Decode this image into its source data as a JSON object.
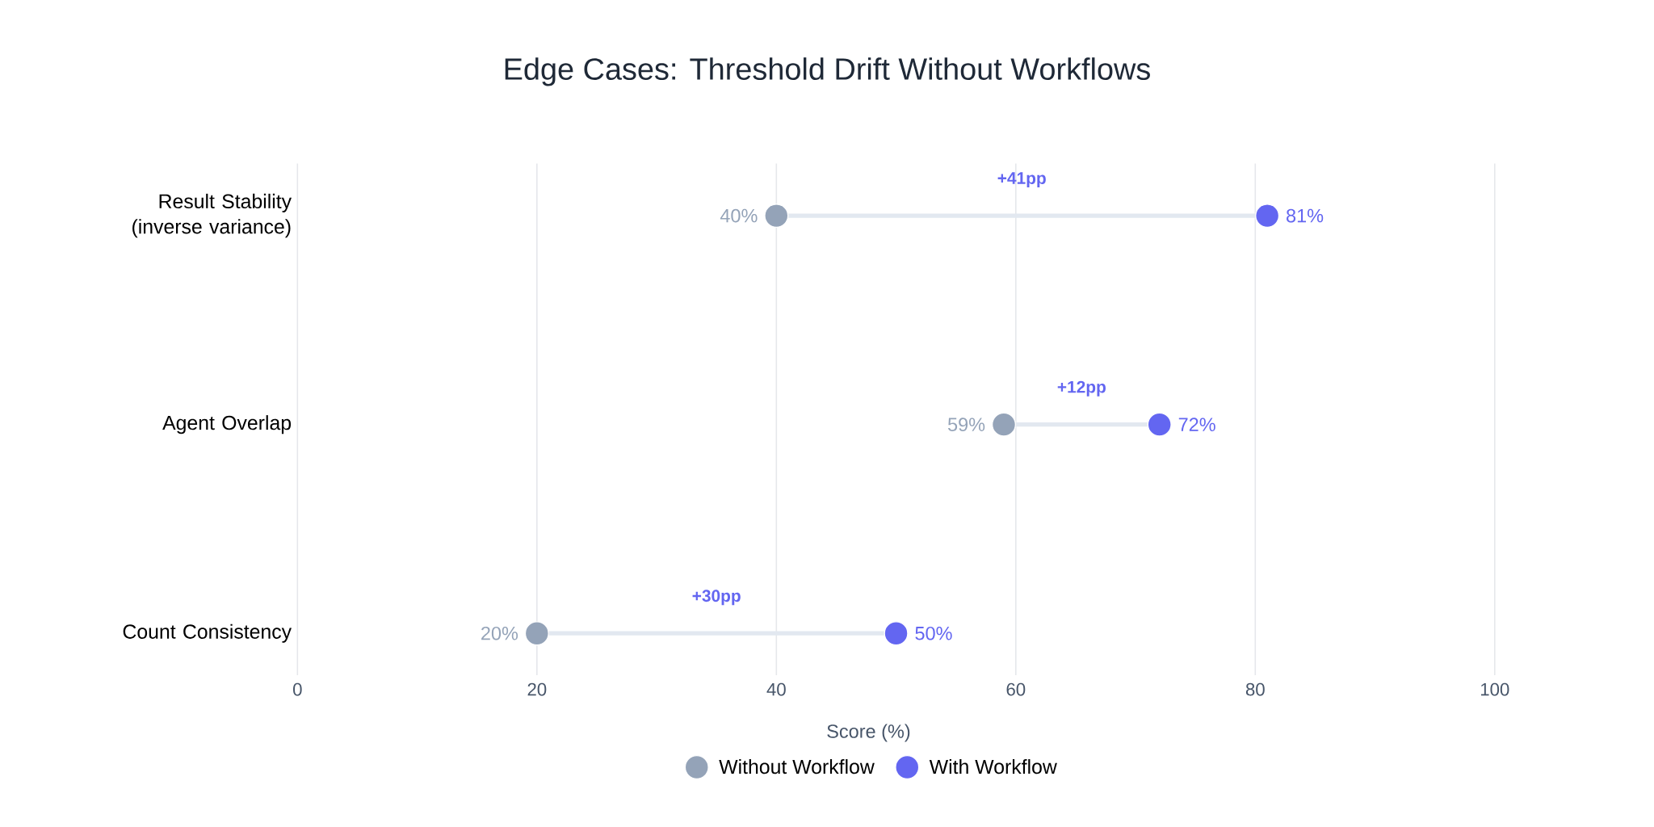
{
  "chart_data": {
    "type": "scatter",
    "orientation": "horizontal",
    "title": "Edge Cases: Threshold Drift Without Workflows",
    "xlabel": "Score (%)",
    "categories": [
      "Result Stability (inverse variance)",
      "Agent Overlap",
      "Count Consistency"
    ],
    "series": [
      {
        "name": "Without Workflow",
        "color": "#94a3b8",
        "values": [
          40,
          59,
          20
        ],
        "value_labels": [
          "40%",
          "59%",
          "20%"
        ]
      },
      {
        "name": "With Workflow",
        "color": "#6366f1",
        "values": [
          81,
          72,
          50
        ],
        "value_labels": [
          "81%",
          "72%",
          "50%"
        ]
      }
    ],
    "annotations": [
      "+41pp",
      "+12pp",
      "+30pp"
    ],
    "xlim": [
      0,
      100
    ],
    "xticks": [
      0,
      20,
      40,
      60,
      80,
      100
    ],
    "grid": "x",
    "legend": "bottom",
    "marker": "circle"
  }
}
